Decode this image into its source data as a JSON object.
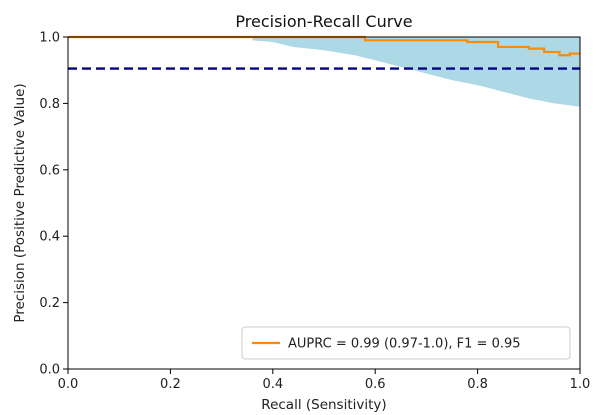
{
  "chart_data": {
    "type": "line",
    "title": "Precision-Recall Curve",
    "xlabel": "Recall (Sensitivity)",
    "ylabel": "Precision (Positive Predictive Value)",
    "xlim": [
      0.0,
      1.0
    ],
    "ylim": [
      0.0,
      1.0
    ],
    "xticks": [
      "0.0",
      "0.2",
      "0.4",
      "0.6",
      "0.8",
      "1.0"
    ],
    "yticks": [
      "0.0",
      "0.2",
      "0.4",
      "0.6",
      "0.8",
      "1.0"
    ],
    "grid": false,
    "legend_position": "lower-right",
    "series": [
      {
        "name": "AUPRC = 0.99 (0.97-1.0), F1 = 0.95",
        "color": "#ff8c00",
        "style": "solid",
        "x": [
          0.0,
          0.58,
          0.58,
          0.78,
          0.78,
          0.84,
          0.84,
          0.9,
          0.9,
          0.93,
          0.93,
          0.96,
          0.96,
          0.98,
          0.98,
          1.0
        ],
        "y": [
          1.0,
          1.0,
          0.99,
          0.99,
          0.985,
          0.985,
          0.97,
          0.97,
          0.965,
          0.965,
          0.955,
          0.955,
          0.945,
          0.945,
          0.95,
          0.95
        ]
      }
    ],
    "reference_line": {
      "y": 0.905,
      "color": "#00008b",
      "style": "dashed"
    },
    "confidence_band": {
      "color": "#add8e6",
      "x": [
        0.36,
        0.4,
        0.44,
        0.5,
        0.56,
        0.6,
        0.65,
        0.7,
        0.75,
        0.8,
        0.85,
        0.9,
        0.95,
        1.0
      ],
      "lower": [
        0.99,
        0.985,
        0.97,
        0.96,
        0.945,
        0.93,
        0.91,
        0.89,
        0.87,
        0.855,
        0.835,
        0.815,
        0.8,
        0.79
      ],
      "upper": [
        1.0,
        1.0,
        1.0,
        1.0,
        1.0,
        1.0,
        1.0,
        1.0,
        1.0,
        1.0,
        1.0,
        1.0,
        1.0,
        1.0
      ]
    }
  }
}
